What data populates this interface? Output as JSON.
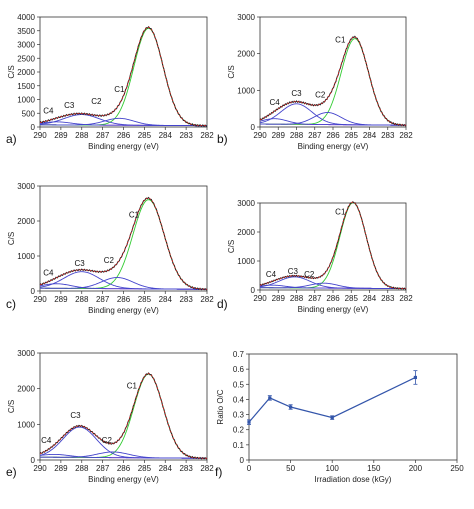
{
  "chart_data": [
    {
      "panel": "a)",
      "type": "line",
      "xlabel": "Binding energy (eV)",
      "ylabel": "C/S",
      "xlim": [
        290,
        282
      ],
      "ylim": [
        0,
        4000
      ],
      "xticks": [
        290,
        289,
        288,
        287,
        286,
        285,
        284,
        283,
        282
      ],
      "yticks": [
        0,
        500,
        1000,
        1500,
        2000,
        2500,
        3000,
        3500,
        4000
      ],
      "baseline": 80,
      "peaks": [
        {
          "name": "C1",
          "center": 284.8,
          "amp": 3530,
          "width": 0.7
        },
        {
          "name": "C2",
          "center": 286.2,
          "amp": 250,
          "width": 0.7
        },
        {
          "name": "C3",
          "center": 288.0,
          "amp": 380,
          "width": 0.85
        },
        {
          "name": "C4",
          "center": 289.2,
          "amp": 110,
          "width": 0.7
        }
      ],
      "labels": [
        {
          "text": "C1",
          "x": 286.2,
          "y": 1280
        },
        {
          "text": "C2",
          "x": 287.3,
          "y": 830
        },
        {
          "text": "C3",
          "x": 288.6,
          "y": 700
        },
        {
          "text": "C4",
          "x": 289.6,
          "y": 500
        }
      ]
    },
    {
      "panel": "b)",
      "type": "line",
      "xlabel": "Binding energy (eV)",
      "ylabel": "C/S",
      "xlim": [
        290,
        282
      ],
      "ylim": [
        0,
        3000
      ],
      "xticks": [
        290,
        289,
        288,
        287,
        286,
        285,
        284,
        283,
        282
      ],
      "yticks": [
        0,
        1000,
        2000,
        3000
      ],
      "baseline": 80,
      "peaks": [
        {
          "name": "C1",
          "center": 284.8,
          "amp": 2350,
          "width": 0.75
        },
        {
          "name": "C2",
          "center": 286.3,
          "amp": 330,
          "width": 0.75
        },
        {
          "name": "C3",
          "center": 288.0,
          "amp": 560,
          "width": 0.85
        },
        {
          "name": "C4",
          "center": 289.2,
          "amp": 150,
          "width": 0.7
        }
      ],
      "labels": [
        {
          "text": "C1",
          "x": 285.6,
          "y": 2300
        },
        {
          "text": "C2",
          "x": 286.7,
          "y": 800
        },
        {
          "text": "C3",
          "x": 288.0,
          "y": 850
        },
        {
          "text": "C4",
          "x": 289.2,
          "y": 600
        }
      ]
    },
    {
      "panel": "c)",
      "type": "line",
      "xlabel": "Binding energy (eV)",
      "ylabel": "C/S",
      "xlim": [
        290,
        282
      ],
      "ylim": [
        0,
        3000
      ],
      "xticks": [
        290,
        289,
        288,
        287,
        286,
        285,
        284,
        283,
        282
      ],
      "yticks": [
        0,
        1000,
        2000,
        3000
      ],
      "baseline": 80,
      "peaks": [
        {
          "name": "C1",
          "center": 284.8,
          "amp": 2550,
          "width": 0.75
        },
        {
          "name": "C2",
          "center": 286.3,
          "amp": 320,
          "width": 0.75
        },
        {
          "name": "C3",
          "center": 288.0,
          "amp": 480,
          "width": 0.85
        },
        {
          "name": "C4",
          "center": 289.2,
          "amp": 130,
          "width": 0.7
        }
      ],
      "labels": [
        {
          "text": "C1",
          "x": 285.5,
          "y": 2100
        },
        {
          "text": "C2",
          "x": 286.7,
          "y": 800
        },
        {
          "text": "C3",
          "x": 288.1,
          "y": 720
        },
        {
          "text": "C4",
          "x": 289.6,
          "y": 450
        }
      ]
    },
    {
      "panel": "d)",
      "type": "line",
      "xlabel": "Binding energy (eV)",
      "ylabel": "C/S",
      "xlim": [
        290,
        282
      ],
      "ylim": [
        0,
        3000
      ],
      "xticks": [
        290,
        289,
        288,
        287,
        286,
        285,
        284,
        283,
        282
      ],
      "yticks": [
        0,
        1000,
        2000,
        3000
      ],
      "baseline": 80,
      "peaks": [
        {
          "name": "C1",
          "center": 284.9,
          "amp": 2950,
          "width": 0.72
        },
        {
          "name": "C2",
          "center": 286.5,
          "amp": 170,
          "width": 0.75
        },
        {
          "name": "C3",
          "center": 288.1,
          "amp": 380,
          "width": 0.85
        },
        {
          "name": "C4",
          "center": 289.3,
          "amp": 90,
          "width": 0.7
        }
      ],
      "labels": [
        {
          "text": "C1",
          "x": 285.6,
          "y": 2600
        },
        {
          "text": "C2",
          "x": 287.3,
          "y": 450
        },
        {
          "text": "C3",
          "x": 288.2,
          "y": 560
        },
        {
          "text": "C4",
          "x": 289.4,
          "y": 450
        }
      ]
    },
    {
      "panel": "e)",
      "type": "line",
      "xlabel": "Binding energy (eV)",
      "ylabel": "C/S",
      "xlim": [
        290,
        282
      ],
      "ylim": [
        0,
        3000
      ],
      "xticks": [
        290,
        289,
        288,
        287,
        286,
        285,
        284,
        283,
        282
      ],
      "yticks": [
        0,
        1000,
        2000,
        3000
      ],
      "baseline": 80,
      "peaks": [
        {
          "name": "C1",
          "center": 284.8,
          "amp": 2350,
          "width": 0.7
        },
        {
          "name": "C2",
          "center": 286.5,
          "amp": 160,
          "width": 0.75
        },
        {
          "name": "C3",
          "center": 288.1,
          "amp": 850,
          "width": 0.8
        },
        {
          "name": "C4",
          "center": 289.3,
          "amp": 80,
          "width": 0.7
        }
      ],
      "labels": [
        {
          "text": "C1",
          "x": 285.6,
          "y": 2000
        },
        {
          "text": "C2",
          "x": 286.8,
          "y": 480
        },
        {
          "text": "C3",
          "x": 288.3,
          "y": 1180
        },
        {
          "text": "C4",
          "x": 289.7,
          "y": 480
        }
      ]
    },
    {
      "panel": "f)",
      "type": "line",
      "xlabel": "Irradiation dose (kGy)",
      "ylabel": "Ratio O/C",
      "xlim": [
        0,
        250
      ],
      "ylim": [
        0,
        0.7
      ],
      "xticks": [
        0,
        50,
        100,
        150,
        200,
        250
      ],
      "yticks": [
        0,
        0.1,
        0.2,
        0.3,
        0.4,
        0.5,
        0.6,
        0.7
      ],
      "x": [
        0,
        25,
        50,
        100,
        200
      ],
      "y": [
        0.25,
        0.41,
        0.35,
        0.28,
        0.545
      ],
      "err": [
        0.015,
        0.015,
        0.015,
        0.012,
        0.045
      ]
    }
  ],
  "colors": {
    "envelope": "#222222",
    "fit": "#cc2222",
    "component": "#4444cc",
    "c1_component": "#33cc33",
    "baseline": "#cc33cc",
    "ratio": "#3355aa"
  }
}
